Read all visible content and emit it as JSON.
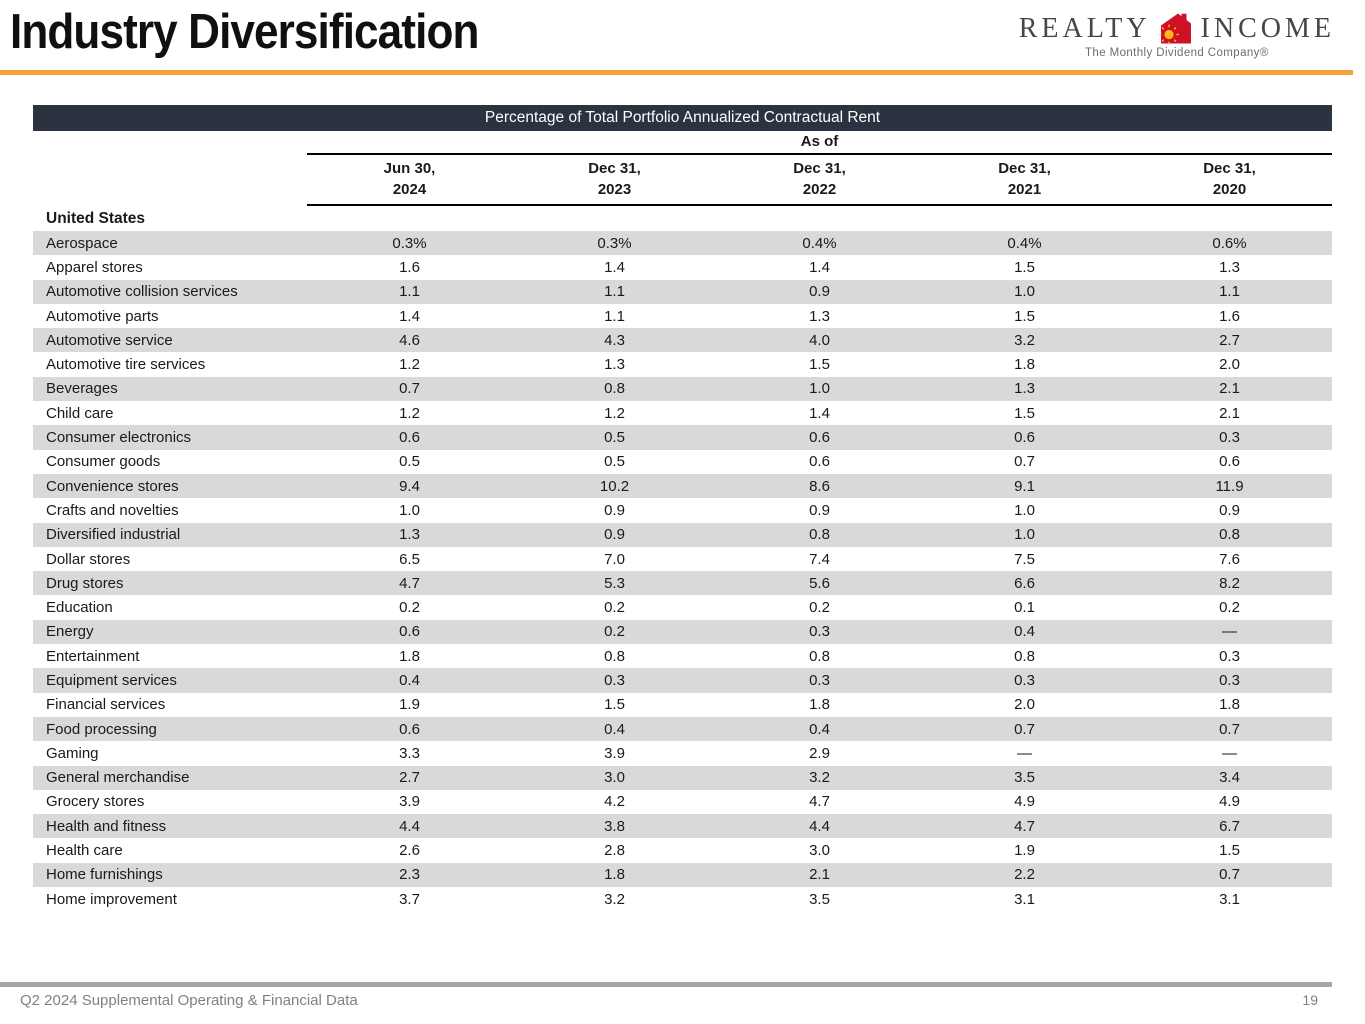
{
  "header": {
    "title": "Industry Diversification",
    "logo": {
      "word_left": "REALTY",
      "word_right": "INCOME",
      "tagline": "The Monthly Dividend Company®",
      "house_icon": "house-icon"
    }
  },
  "colors": {
    "accent_orange": "#F2A33C",
    "table_header_bar": "#2B3240",
    "row_stripe": "#D9D9D9",
    "footer_bar": "#A6A6A6",
    "footer_text": "#808080",
    "logo_red": "#CE1126",
    "logo_gold": "#FDB913"
  },
  "table": {
    "title": "Percentage of Total Portfolio Annualized Contractual Rent",
    "as_of_label": "As of",
    "columns": [
      {
        "line1": "Jun 30,",
        "line2": "2024"
      },
      {
        "line1": "Dec 31,",
        "line2": "2023"
      },
      {
        "line1": "Dec 31,",
        "line2": "2022"
      },
      {
        "line1": "Dec 31,",
        "line2": "2021"
      },
      {
        "line1": "Dec 31,",
        "line2": "2020"
      }
    ],
    "section": "United States",
    "rows": [
      {
        "label": "Aerospace",
        "values": [
          "0.3%",
          "0.3%",
          "0.4%",
          "0.4%",
          "0.6%"
        ]
      },
      {
        "label": "Apparel stores",
        "values": [
          "1.6",
          "1.4",
          "1.4",
          "1.5",
          "1.3"
        ]
      },
      {
        "label": "Automotive collision services",
        "values": [
          "1.1",
          "1.1",
          "0.9",
          "1.0",
          "1.1"
        ]
      },
      {
        "label": "Automotive parts",
        "values": [
          "1.4",
          "1.1",
          "1.3",
          "1.5",
          "1.6"
        ]
      },
      {
        "label": "Automotive service",
        "values": [
          "4.6",
          "4.3",
          "4.0",
          "3.2",
          "2.7"
        ]
      },
      {
        "label": "Automotive tire services",
        "values": [
          "1.2",
          "1.3",
          "1.5",
          "1.8",
          "2.0"
        ]
      },
      {
        "label": "Beverages",
        "values": [
          "0.7",
          "0.8",
          "1.0",
          "1.3",
          "2.1"
        ]
      },
      {
        "label": "Child care",
        "values": [
          "1.2",
          "1.2",
          "1.4",
          "1.5",
          "2.1"
        ]
      },
      {
        "label": "Consumer electronics",
        "values": [
          "0.6",
          "0.5",
          "0.6",
          "0.6",
          "0.3"
        ]
      },
      {
        "label": "Consumer goods",
        "values": [
          "0.5",
          "0.5",
          "0.6",
          "0.7",
          "0.6"
        ]
      },
      {
        "label": "Convenience stores",
        "values": [
          "9.4",
          "10.2",
          "8.6",
          "9.1",
          "11.9"
        ]
      },
      {
        "label": "Crafts and novelties",
        "values": [
          "1.0",
          "0.9",
          "0.9",
          "1.0",
          "0.9"
        ]
      },
      {
        "label": "Diversified industrial",
        "values": [
          "1.3",
          "0.9",
          "0.8",
          "1.0",
          "0.8"
        ]
      },
      {
        "label": "Dollar stores",
        "values": [
          "6.5",
          "7.0",
          "7.4",
          "7.5",
          "7.6"
        ]
      },
      {
        "label": "Drug stores",
        "values": [
          "4.7",
          "5.3",
          "5.6",
          "6.6",
          "8.2"
        ]
      },
      {
        "label": "Education",
        "values": [
          "0.2",
          "0.2",
          "0.2",
          "0.1",
          "0.2"
        ]
      },
      {
        "label": "Energy",
        "values": [
          "0.6",
          "0.2",
          "0.3",
          "0.4",
          "—"
        ]
      },
      {
        "label": "Entertainment",
        "values": [
          "1.8",
          "0.8",
          "0.8",
          "0.8",
          "0.3"
        ]
      },
      {
        "label": "Equipment services",
        "values": [
          "0.4",
          "0.3",
          "0.3",
          "0.3",
          "0.3"
        ]
      },
      {
        "label": "Financial services",
        "values": [
          "1.9",
          "1.5",
          "1.8",
          "2.0",
          "1.8"
        ]
      },
      {
        "label": "Food processing",
        "values": [
          "0.6",
          "0.4",
          "0.4",
          "0.7",
          "0.7"
        ]
      },
      {
        "label": "Gaming",
        "values": [
          "3.3",
          "3.9",
          "2.9",
          "—",
          "—"
        ]
      },
      {
        "label": "General merchandise",
        "values": [
          "2.7",
          "3.0",
          "3.2",
          "3.5",
          "3.4"
        ]
      },
      {
        "label": "Grocery stores",
        "values": [
          "3.9",
          "4.2",
          "4.7",
          "4.9",
          "4.9"
        ]
      },
      {
        "label": "Health and fitness",
        "values": [
          "4.4",
          "3.8",
          "4.4",
          "4.7",
          "6.7"
        ]
      },
      {
        "label": "Health care",
        "values": [
          "2.6",
          "2.8",
          "3.0",
          "1.9",
          "1.5"
        ]
      },
      {
        "label": "Home furnishings",
        "values": [
          "2.3",
          "1.8",
          "2.1",
          "2.2",
          "0.7"
        ]
      },
      {
        "label": "Home improvement",
        "values": [
          "3.7",
          "3.2",
          "3.5",
          "3.1",
          "3.1"
        ]
      }
    ]
  },
  "footer": {
    "source": "Q2 2024 Supplemental Operating & Financial Data",
    "page_number": "19"
  }
}
